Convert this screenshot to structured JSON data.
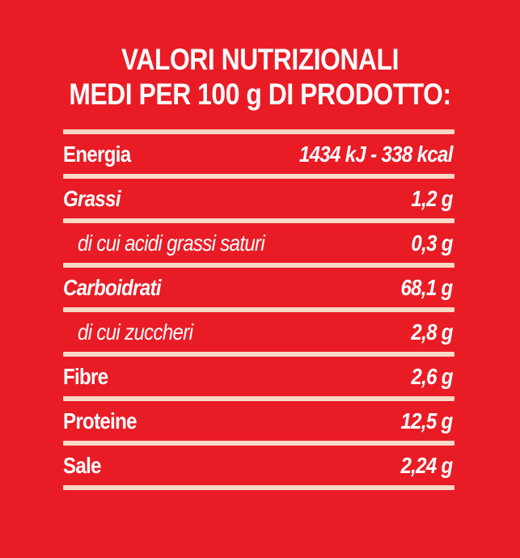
{
  "title": {
    "line1": "VALORI NUTRIZIONALI",
    "line2": "MEDI PER 100 g DI PRODOTTO:"
  },
  "rows": [
    {
      "label": "Energia",
      "value": "1434 kJ - 338 kcal"
    },
    {
      "label": "Grassi",
      "value": "1,2 g"
    },
    {
      "label": "di cui acidi grassi saturi",
      "value": "0,3 g"
    },
    {
      "label": "Carboidrati",
      "value": "68,1 g"
    },
    {
      "label": "di cui zuccheri",
      "value": "2,8 g"
    },
    {
      "label": "Fibre",
      "value": "2,6 g"
    },
    {
      "label": "Proteine",
      "value": "12,5 g"
    },
    {
      "label": "Sale",
      "value": "2,24 g"
    }
  ],
  "colors": {
    "background": "#e91c26",
    "text": "#ffffff",
    "rule": "#f7d9c6"
  }
}
